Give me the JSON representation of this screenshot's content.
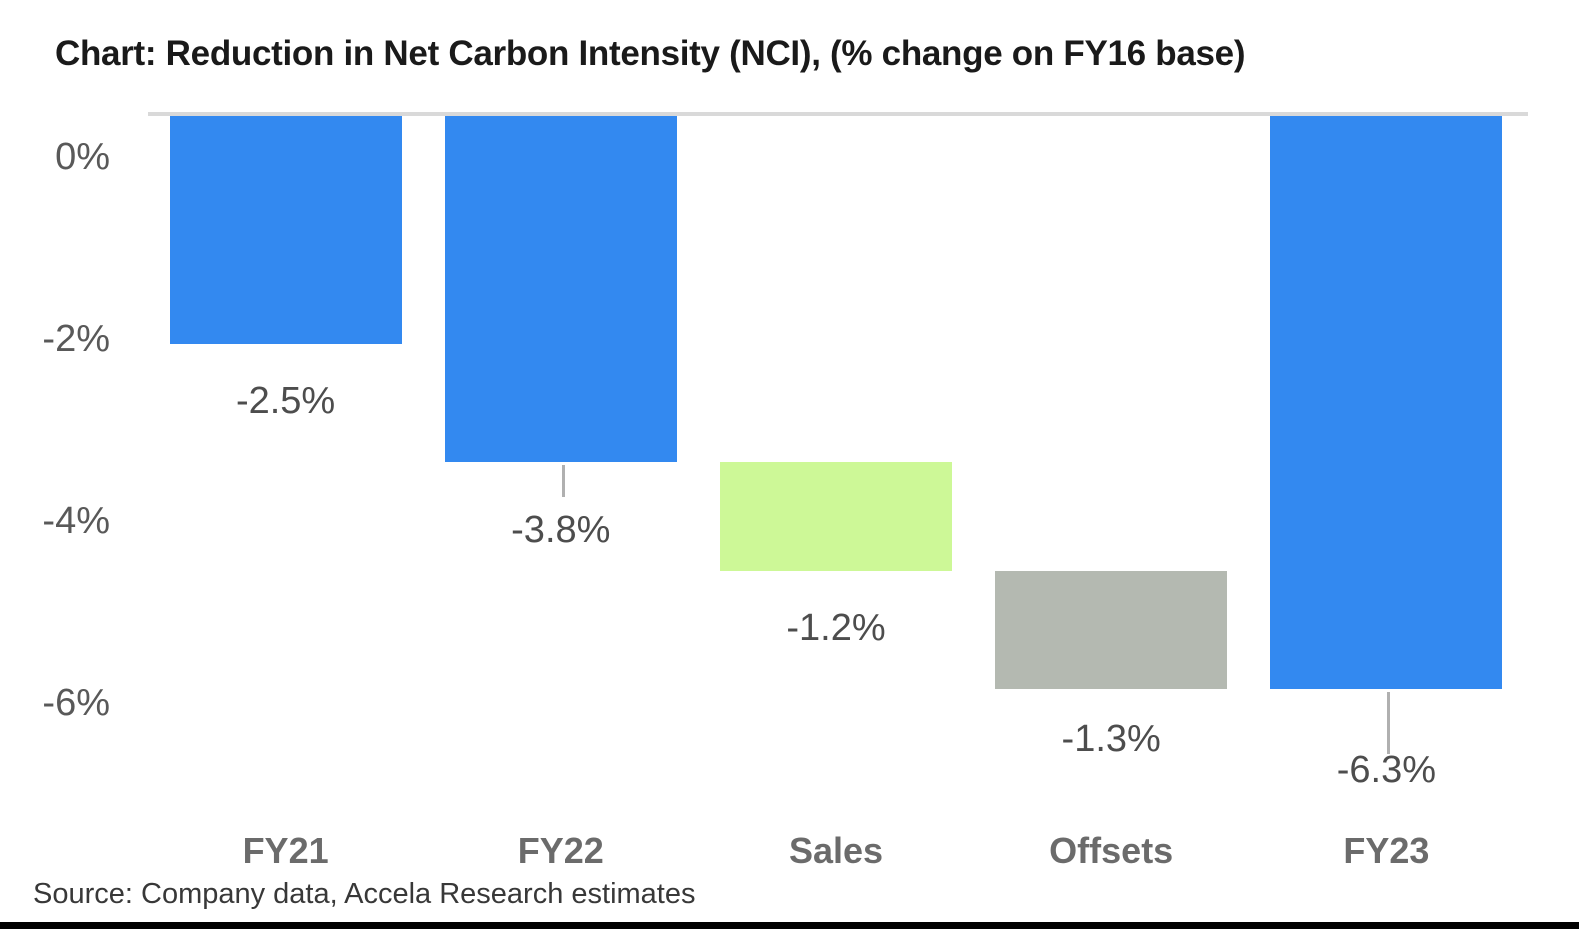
{
  "source": "Source: Company data, Accela Research estimates",
  "colors": {
    "total_bar": "#3389f0",
    "sales_bar": "#cdf897",
    "offsets_bar": "#b4b9b1",
    "top_line": "#d9d9d9",
    "leader_line": "#b0b0b0",
    "title_text": "#1a1a1a",
    "tick_text": "#595959",
    "value_text": "#4d4d4d",
    "axis_label_text": "#6b6b6b",
    "source_text": "#383838",
    "bottom_rule": "#000000",
    "background": "#ffffff"
  },
  "chart_data": {
    "type": "bar",
    "subtype": "waterfall",
    "title": "Chart: Reduction in Net Carbon Intensity (NCI), (% change on FY16 base)",
    "xlabel": "",
    "ylabel": "",
    "unit": "%",
    "grid": false,
    "legend": false,
    "categories": [
      "FY21",
      "FY22",
      "Sales",
      "Offsets",
      "FY23"
    ],
    "bars": [
      {
        "label": "FY21",
        "value": -2.5,
        "display": "-2.5%",
        "role": "total",
        "color_key": "total_bar",
        "cum_start": 0,
        "leader": false
      },
      {
        "label": "FY22",
        "value": -3.8,
        "display": "-3.8%",
        "role": "total",
        "color_key": "total_bar",
        "cum_start": 0,
        "leader": true
      },
      {
        "label": "Sales",
        "value": -1.2,
        "display": "-1.2%",
        "role": "delta",
        "color_key": "sales_bar",
        "cum_start": -3.8,
        "leader": false
      },
      {
        "label": "Offsets",
        "value": -1.3,
        "display": "-1.3%",
        "role": "delta",
        "color_key": "offsets_bar",
        "cum_start": -5.0,
        "leader": false
      },
      {
        "label": "FY23",
        "value": -6.3,
        "display": "-6.3%",
        "role": "total",
        "color_key": "total_bar",
        "cum_start": 0,
        "leader": true
      }
    ],
    "y_axis": {
      "ticks": [
        {
          "value": 0,
          "label": "0%"
        },
        {
          "value": -2,
          "label": "-2%"
        },
        {
          "value": -4,
          "label": "-4%"
        },
        {
          "value": -6,
          "label": "-6%"
        }
      ],
      "range": [
        -7.2,
        0.5
      ]
    }
  }
}
